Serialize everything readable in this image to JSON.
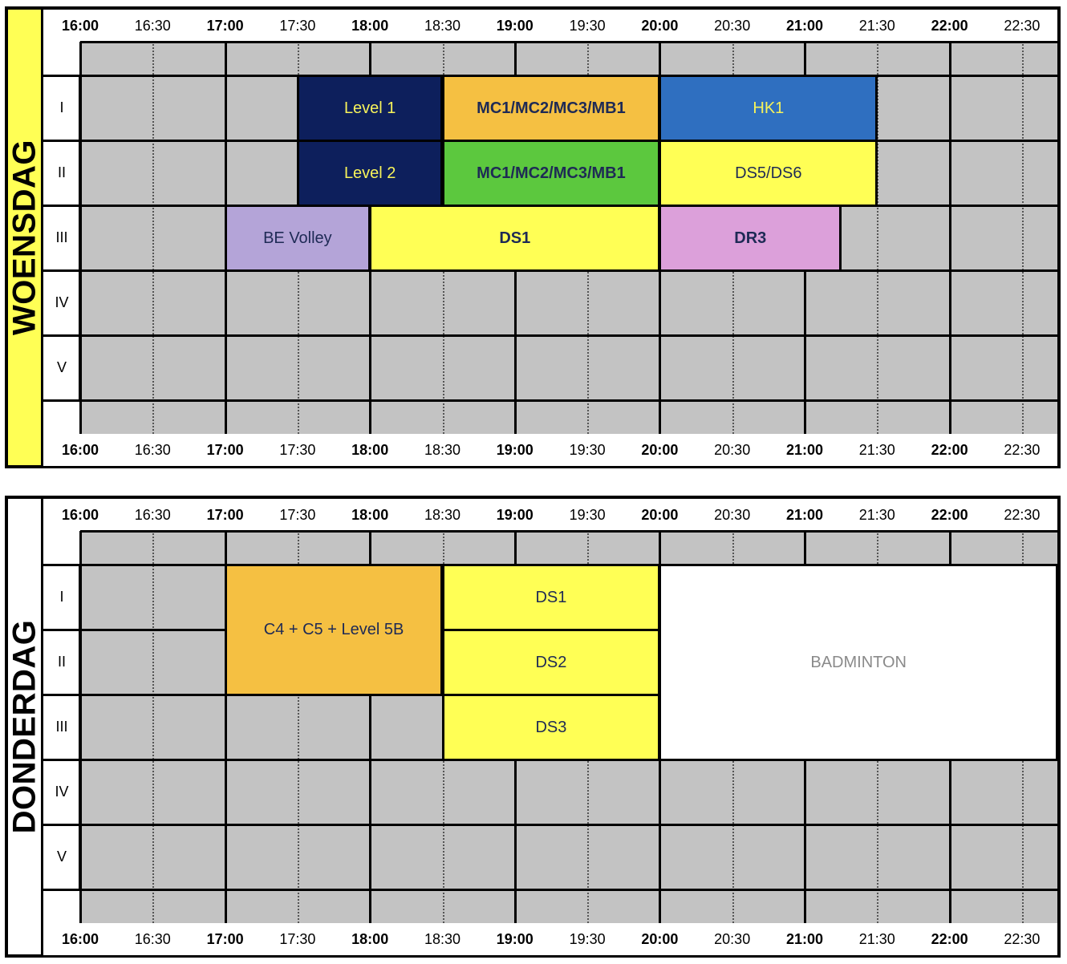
{
  "time_labels": [
    {
      "text": "16:00",
      "bold": true
    },
    {
      "text": "16:30",
      "bold": false
    },
    {
      "text": "17:00",
      "bold": true
    },
    {
      "text": "17:30",
      "bold": false
    },
    {
      "text": "18:00",
      "bold": true
    },
    {
      "text": "18:30",
      "bold": false
    },
    {
      "text": "19:00",
      "bold": true
    },
    {
      "text": "19:30",
      "bold": false
    },
    {
      "text": "20:00",
      "bold": true
    },
    {
      "text": "20:30",
      "bold": false
    },
    {
      "text": "21:00",
      "bold": true
    },
    {
      "text": "21:30",
      "bold": false
    },
    {
      "text": "22:00",
      "bold": true
    },
    {
      "text": "22:30",
      "bold": false
    }
  ],
  "row_labels": [
    "I",
    "II",
    "III",
    "IV",
    "V"
  ],
  "schedules": [
    {
      "day": "WOENSDAG",
      "day_bg": "#ffff55",
      "blocks": [
        {
          "label": "Level 1",
          "start": "17:30",
          "end": "18:30",
          "rows": [
            1,
            1
          ],
          "bg": "#0d1f5c",
          "fg": "#f7f35a",
          "bold": false
        },
        {
          "label": "MC1/MC2/MC3/MB1",
          "start": "18:30",
          "end": "20:00",
          "rows": [
            1,
            1
          ],
          "bg": "#f5c042",
          "fg": "#1e2a55",
          "bold": true
        },
        {
          "label": "HK1",
          "start": "20:00",
          "end": "21:30",
          "rows": [
            1,
            1
          ],
          "bg": "#2f6fc0",
          "fg": "#f7f35a",
          "bold": false
        },
        {
          "label": "Level 2",
          "start": "17:30",
          "end": "18:30",
          "rows": [
            2,
            2
          ],
          "bg": "#0d1f5c",
          "fg": "#f7f35a",
          "bold": false
        },
        {
          "label": "MC1/MC2/MC3/MB1",
          "start": "18:30",
          "end": "20:00",
          "rows": [
            2,
            2
          ],
          "bg": "#5cc83e",
          "fg": "#1e2a55",
          "bold": true
        },
        {
          "label": "DS5/DS6",
          "start": "20:00",
          "end": "21:30",
          "rows": [
            2,
            2
          ],
          "bg": "#ffff55",
          "fg": "#1e2a55",
          "bold": false
        },
        {
          "label": "BE Volley",
          "start": "17:00",
          "end": "18:00",
          "rows": [
            3,
            3
          ],
          "bg": "#b4a4d8",
          "fg": "#1e2a55",
          "bold": false
        },
        {
          "label": "DS1",
          "start": "18:00",
          "end": "20:00",
          "rows": [
            3,
            3
          ],
          "bg": "#ffff55",
          "fg": "#1e2a55",
          "bold": true
        },
        {
          "label": "DR3",
          "start": "20:00",
          "end": "21:15",
          "rows": [
            3,
            3
          ],
          "bg": "#dca0da",
          "fg": "#1e2a55",
          "bold": true
        }
      ]
    },
    {
      "day": "DONDERDAG",
      "day_bg": "#ffffff",
      "blocks": [
        {
          "label": "C4 + C5 + Level 5B",
          "start": "17:00",
          "end": "18:30",
          "rows": [
            1,
            2
          ],
          "bg": "#f5c042",
          "fg": "#1e2a55",
          "bold": false
        },
        {
          "label": "DS1",
          "start": "18:30",
          "end": "20:00",
          "rows": [
            1,
            1
          ],
          "bg": "#ffff55",
          "fg": "#1e2a55",
          "bold": false
        },
        {
          "label": "DS2",
          "start": "18:30",
          "end": "20:00",
          "rows": [
            2,
            2
          ],
          "bg": "#ffff55",
          "fg": "#1e2a55",
          "bold": false
        },
        {
          "label": "DS3",
          "start": "18:30",
          "end": "20:00",
          "rows": [
            3,
            3
          ],
          "bg": "#ffff55",
          "fg": "#1e2a55",
          "bold": false
        },
        {
          "label": "BADMINTON",
          "start": "20:00",
          "end": "23:00",
          "rows": [
            1,
            3
          ],
          "bg": "#ffffff",
          "fg": "#8a8a8a",
          "bold": false
        }
      ]
    }
  ]
}
